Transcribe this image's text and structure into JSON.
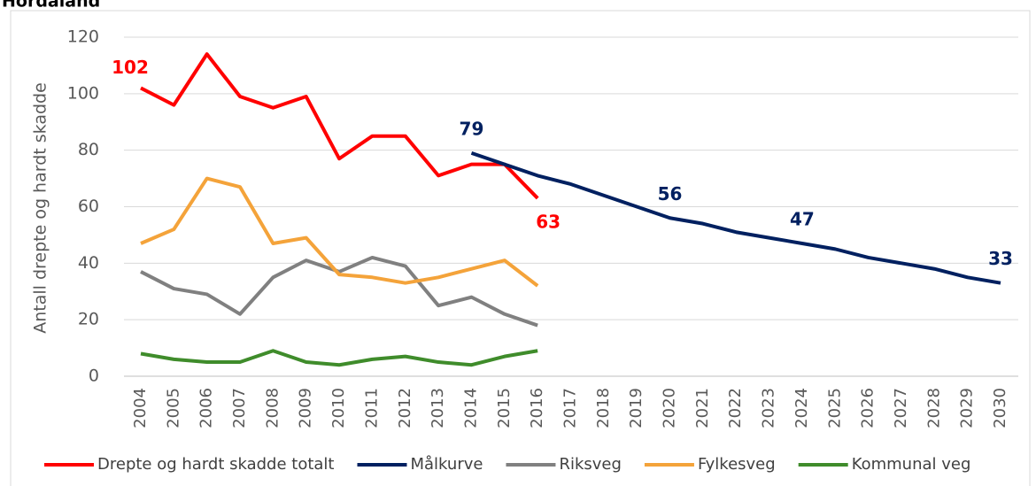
{
  "chart_data": {
    "type": "line",
    "title": "Hordaland",
    "ylabel": "Antall drepte og hardt skadde",
    "categories": [
      "2004",
      "2005",
      "2006",
      "2007",
      "2008",
      "2009",
      "2010",
      "2011",
      "2012",
      "2013",
      "2014",
      "2015",
      "2016",
      "2017",
      "2018",
      "2019",
      "2020",
      "2021",
      "2022",
      "2023",
      "2024",
      "2025",
      "2026",
      "2027",
      "2028",
      "2029",
      "2030"
    ],
    "ylim": [
      0,
      120
    ],
    "yticks": [
      0,
      20,
      40,
      60,
      80,
      100,
      120
    ],
    "grid": true,
    "legend": "bottom",
    "series": [
      {
        "name": "Drepte og hardt skadde totalt",
        "color": "#ff0000",
        "values": [
          102,
          96,
          114,
          99,
          95,
          99,
          77,
          85,
          85,
          71,
          75,
          75,
          63,
          null,
          null,
          null,
          null,
          null,
          null,
          null,
          null,
          null,
          null,
          null,
          null,
          null,
          null
        ],
        "value_labels": [
          "102",
          null,
          null,
          null,
          null,
          null,
          null,
          null,
          null,
          null,
          null,
          null,
          "63",
          null,
          null,
          null,
          null,
          null,
          null,
          null,
          null,
          null,
          null,
          null,
          null,
          null,
          null
        ]
      },
      {
        "name": "Målkurve",
        "color": "#002060",
        "values": [
          null,
          null,
          null,
          null,
          null,
          null,
          null,
          null,
          null,
          null,
          79,
          75,
          71,
          68,
          64,
          60,
          56,
          54,
          51,
          49,
          47,
          45,
          42,
          40,
          38,
          35,
          33
        ],
        "value_labels": [
          null,
          null,
          null,
          null,
          null,
          null,
          null,
          null,
          null,
          null,
          "79",
          null,
          null,
          null,
          null,
          null,
          "56",
          null,
          null,
          null,
          "47",
          null,
          null,
          null,
          null,
          null,
          "33"
        ]
      },
      {
        "name": "Riksveg",
        "color": "#808080",
        "values": [
          37,
          31,
          29,
          22,
          35,
          41,
          37,
          42,
          39,
          25,
          28,
          22,
          18,
          null,
          null,
          null,
          null,
          null,
          null,
          null,
          null,
          null,
          null,
          null,
          null,
          null,
          null
        ]
      },
      {
        "name": "Fylkesveg",
        "color": "#f4a33a",
        "values": [
          47,
          52,
          70,
          67,
          47,
          49,
          36,
          35,
          33,
          35,
          38,
          41,
          32,
          null,
          null,
          null,
          null,
          null,
          null,
          null,
          null,
          null,
          null,
          null,
          null,
          null,
          null
        ]
      },
      {
        "name": "Kommunal veg",
        "color": "#3f8c2b",
        "values": [
          8,
          6,
          5,
          5,
          9,
          5,
          4,
          6,
          7,
          5,
          4,
          7,
          9,
          null,
          null,
          null,
          null,
          null,
          null,
          null,
          null,
          null,
          null,
          null,
          null,
          null,
          null
        ]
      }
    ]
  }
}
